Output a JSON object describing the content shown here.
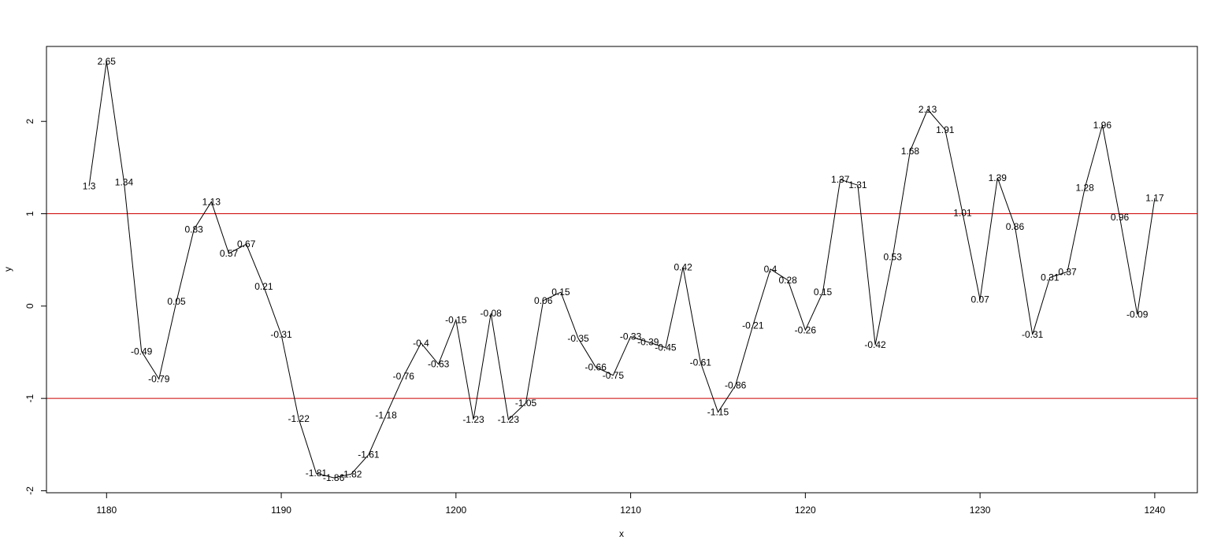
{
  "chart_data": {
    "type": "line",
    "title": "",
    "xlabel": "x",
    "ylabel": "y",
    "xlim": [
      1176.56,
      1242.44
    ],
    "ylim": [
      -2.0216,
      2.8116
    ],
    "x_ticks": [
      "1180",
      "1190",
      "1200",
      "1210",
      "1220",
      "1230",
      "1240"
    ],
    "y_ticks": [
      "-2",
      "-1",
      "0",
      "1",
      "2"
    ],
    "grid": false,
    "series": [
      {
        "color": "#000000",
        "x": [
          1179,
          1180,
          1181,
          1182,
          1183,
          1184,
          1185,
          1186,
          1187,
          1188,
          1189,
          1190,
          1191,
          1192,
          1193,
          1194,
          1195,
          1196,
          1197,
          1198,
          1199,
          1200,
          1201,
          1202,
          1203,
          1204,
          1205,
          1206,
          1207,
          1208,
          1209,
          1210,
          1211,
          1212,
          1213,
          1214,
          1215,
          1216,
          1217,
          1218,
          1219,
          1220,
          1221,
          1222,
          1223,
          1224,
          1225,
          1226,
          1227,
          1228,
          1229,
          1230,
          1231,
          1232,
          1233,
          1234,
          1235,
          1236,
          1237,
          1238,
          1239,
          1240
        ],
        "values": [
          1.3,
          2.65,
          1.34,
          -0.49,
          -0.79,
          0.05,
          0.83,
          1.13,
          0.57,
          0.67,
          0.21,
          -0.31,
          -1.22,
          -1.81,
          -1.86,
          -1.82,
          -1.61,
          -1.18,
          -0.76,
          -0.4,
          -0.63,
          -0.15,
          -1.23,
          -0.08,
          -1.23,
          -1.05,
          0.06,
          0.15,
          -0.35,
          -0.66,
          -0.75,
          -0.33,
          -0.39,
          -0.45,
          0.42,
          -0.61,
          -1.15,
          -0.86,
          -0.21,
          0.4,
          0.28,
          -0.26,
          0.15,
          1.37,
          1.31,
          -0.42,
          0.53,
          1.68,
          2.13,
          1.91,
          1.01,
          0.07,
          1.39,
          0.86,
          -0.31,
          0.31,
          0.37,
          1.28,
          1.96,
          0.96,
          -0.09,
          1.17
        ],
        "labels": [
          "1.3",
          "2.65",
          "1.34",
          "-0.49",
          "-0.79",
          "0.05",
          "0.83",
          "1.13",
          "0.57",
          "0.67",
          "0.21",
          "-0.31",
          "-1.22",
          "-1.81",
          "-1.86",
          "-1.82",
          "-1.61",
          "-1.18",
          "-0.76",
          "-0.4",
          "-0.63",
          "-0.15",
          "-1.23",
          "-0.08",
          "-1.23",
          "-1.05",
          "0.06",
          "0.15",
          "-0.35",
          "-0.66",
          "-0.75",
          "-0.33",
          "-0.39",
          "-0.45",
          "0.42",
          "-0.61",
          "-1.15",
          "-0.86",
          "-0.21",
          "0.4",
          "0.28",
          "-0.26",
          "0.15",
          "1.37",
          "1.31",
          "-0.42",
          "0.53",
          "1.68",
          "2.13",
          "1.91",
          "1.01",
          "0.07",
          "1.39",
          "0.86",
          "-0.31",
          "0.31",
          "0.37",
          "1.28",
          "1.96",
          "0.96",
          "-0.09",
          "1.17"
        ]
      }
    ],
    "hlines": [
      {
        "y": 1,
        "color": "#cc0000"
      },
      {
        "y": -1,
        "color": "#cc0000"
      }
    ]
  }
}
